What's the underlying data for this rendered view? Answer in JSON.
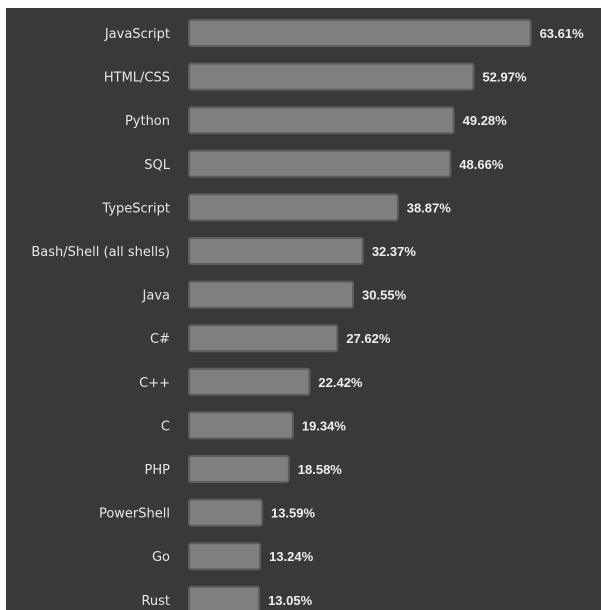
{
  "chart_data": {
    "type": "bar",
    "orientation": "horizontal",
    "categories": [
      "JavaScript",
      "HTML/CSS",
      "Python",
      "SQL",
      "TypeScript",
      "Bash/Shell (all shells)",
      "Java",
      "C#",
      "C++",
      "C",
      "PHP",
      "PowerShell",
      "Go",
      "Rust"
    ],
    "values": [
      63.61,
      52.97,
      49.28,
      48.66,
      38.87,
      32.37,
      30.55,
      27.62,
      22.42,
      19.34,
      18.58,
      13.59,
      13.24,
      13.05
    ],
    "value_labels": [
      "63.61%",
      "52.97%",
      "49.28%",
      "48.66%",
      "38.87%",
      "32.37%",
      "30.55%",
      "27.62%",
      "22.42%",
      "19.34%",
      "18.58%",
      "13.59%",
      "13.24%",
      "13.05%"
    ],
    "unit": "%",
    "grid": false,
    "legend": "none",
    "colors": {
      "background": "#393939",
      "bar": "#7f7f7f",
      "bar_border": "#5e5e5e",
      "text": "#e6e6e6"
    }
  }
}
